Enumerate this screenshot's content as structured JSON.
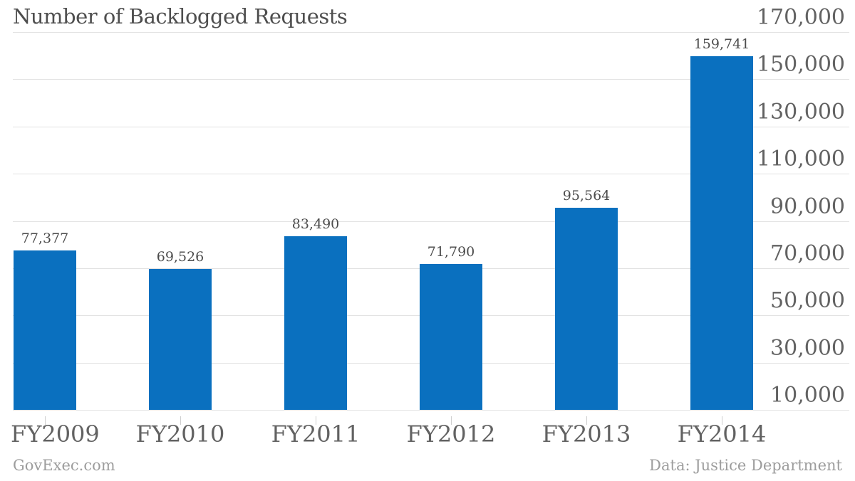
{
  "chart_data": {
    "type": "bar",
    "title": "Number of Backlogged Requests",
    "categories": [
      "FY2009",
      "FY2010",
      "FY2011",
      "FY2012",
      "FY2013",
      "FY2014"
    ],
    "values": [
      77377,
      69526,
      83490,
      71790,
      95564,
      159741
    ],
    "value_labels": [
      "77,377",
      "69,526",
      "83,490",
      "71,790",
      "95,564",
      "159,741"
    ],
    "yticks": [
      {
        "value": 170000,
        "label": "170,000"
      },
      {
        "value": 150000,
        "label": "150,000"
      },
      {
        "value": 130000,
        "label": "130,000"
      },
      {
        "value": 110000,
        "label": "110,000"
      },
      {
        "value": 90000,
        "label": "90,000"
      },
      {
        "value": 70000,
        "label": "70,000"
      },
      {
        "value": 50000,
        "label": "50,000"
      },
      {
        "value": 30000,
        "label": "30,000"
      },
      {
        "value": 10000,
        "label": "10,000"
      }
    ],
    "ylim": [
      10000,
      170000
    ],
    "xlabel": "",
    "ylabel": "",
    "grid": "horizontal",
    "legend": "none",
    "footer_left": "GovExec.com",
    "footer_right": "Data: Justice Department",
    "colors": {
      "bar": "#0a70bf",
      "gridline": "#e2e2e2",
      "tick": "#cfcfcf",
      "title_text": "#4e4e4e",
      "axis_text": "#626262",
      "value_text": "#4c4c4c",
      "footer_text": "#9d9d9d",
      "background": "#ffffff"
    }
  }
}
